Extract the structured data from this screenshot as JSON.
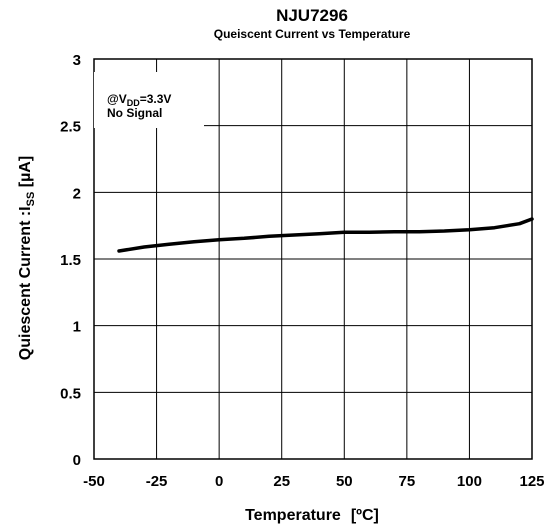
{
  "chart_data": {
    "type": "line",
    "title": "NJU7296",
    "subtitle": "Queiscent Current vs Temperature",
    "xlabel": "Temperature",
    "xunit": "[ºC]",
    "ylabel_main": "Quiescent Current :I",
    "ylabel_sub": "SS",
    "ylabel_unit": " [µA]",
    "xlim": [
      -50,
      125
    ],
    "ylim": [
      0,
      3
    ],
    "xticks": [
      -50,
      -25,
      0,
      25,
      50,
      75,
      100,
      125
    ],
    "xtick_labels": [
      "-50",
      "-25",
      "0",
      "25",
      "50",
      "75",
      "100",
      "125"
    ],
    "yticks": [
      0,
      0.5,
      1,
      1.5,
      2,
      2.5,
      3
    ],
    "ytick_labels": [
      "0",
      "0.5",
      "1",
      "1.5",
      "2",
      "2.5",
      "3"
    ],
    "grid": true,
    "annotation": {
      "line1_prefix": "@V",
      "line1_sub": "DD",
      "line1_suffix": "=3.3V",
      "line2": "No Signal"
    },
    "series": [
      {
        "x": [
          -40,
          -30,
          -20,
          -10,
          0,
          10,
          20,
          30,
          40,
          50,
          60,
          70,
          80,
          90,
          100,
          110,
          115,
          120,
          125
        ],
        "y": [
          1.56,
          1.59,
          1.61,
          1.63,
          1.645,
          1.655,
          1.67,
          1.68,
          1.69,
          1.7,
          1.7,
          1.705,
          1.705,
          1.71,
          1.72,
          1.735,
          1.75,
          1.765,
          1.8
        ],
        "color": "#000000"
      }
    ]
  }
}
